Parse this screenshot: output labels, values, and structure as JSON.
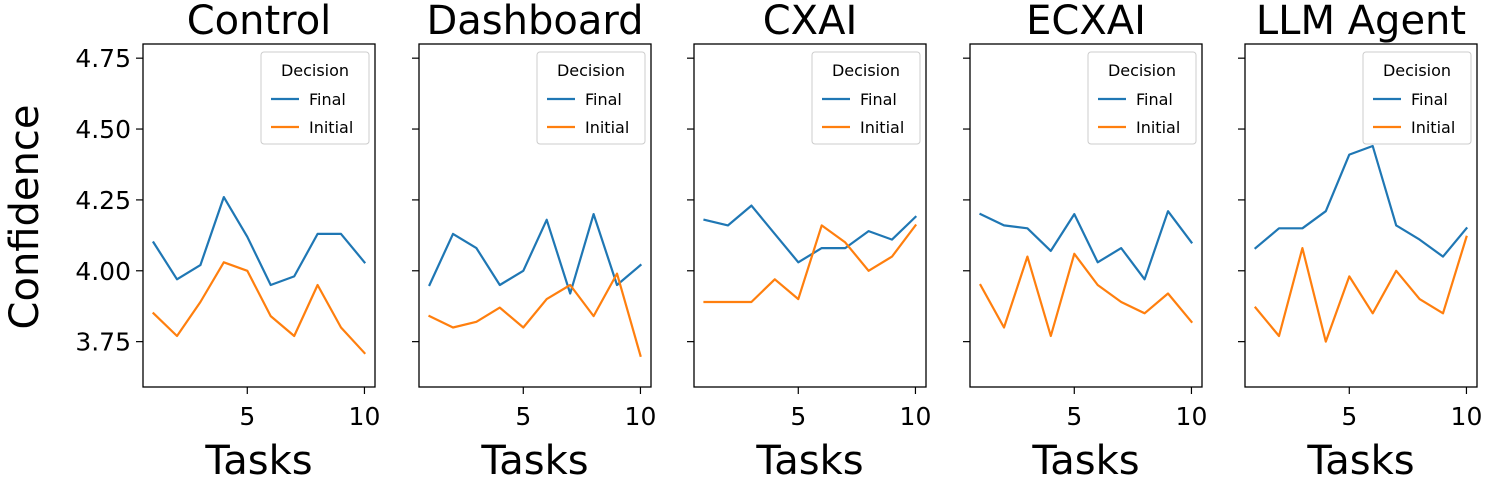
{
  "chart_data": {
    "type": "line",
    "ylabel": "Confidence",
    "xlabel": "Tasks",
    "xlim": [
      0.55,
      10.45
    ],
    "ylim": [
      3.59,
      4.8
    ],
    "xticks": [
      5,
      10
    ],
    "yticks": [
      3.75,
      4.0,
      4.25,
      4.5,
      4.75
    ],
    "ytick_labels": [
      "3.75",
      "4.00",
      "4.25",
      "4.50",
      "4.75"
    ],
    "legend": {
      "title": "Decision",
      "position": "top-right",
      "entries": [
        "Final",
        "Initial"
      ]
    },
    "colors": {
      "Final": "#1f77b4",
      "Initial": "#ff7f0e"
    },
    "x": [
      1,
      2,
      3,
      4,
      5,
      6,
      7,
      8,
      9,
      10
    ],
    "panels": [
      {
        "title": "Control",
        "series": [
          {
            "name": "Final",
            "values": [
              4.1,
              3.97,
              4.02,
              4.26,
              4.12,
              3.95,
              3.98,
              4.13,
              4.13,
              4.03
            ]
          },
          {
            "name": "Initial",
            "values": [
              3.85,
              3.77,
              3.89,
              4.03,
              4.0,
              3.84,
              3.77,
              3.95,
              3.8,
              3.71
            ]
          }
        ]
      },
      {
        "title": "Dashboard",
        "series": [
          {
            "name": "Final",
            "values": [
              3.95,
              4.13,
              4.08,
              3.95,
              4.0,
              4.18,
              3.92,
              4.2,
              3.95,
              4.02
            ]
          },
          {
            "name": "Initial",
            "values": [
              3.84,
              3.8,
              3.82,
              3.87,
              3.8,
              3.9,
              3.95,
              3.84,
              3.99,
              3.7
            ]
          }
        ]
      },
      {
        "title": "CXAI",
        "series": [
          {
            "name": "Final",
            "values": [
              4.18,
              4.16,
              4.23,
              4.13,
              4.03,
              4.08,
              4.08,
              4.14,
              4.11,
              4.19
            ]
          },
          {
            "name": "Initial",
            "values": [
              3.89,
              3.89,
              3.89,
              3.97,
              3.9,
              4.16,
              4.1,
              4.0,
              4.05,
              4.16
            ]
          }
        ]
      },
      {
        "title": "ECXAI",
        "series": [
          {
            "name": "Final",
            "values": [
              4.2,
              4.16,
              4.15,
              4.07,
              4.2,
              4.03,
              4.08,
              3.97,
              4.21,
              4.1
            ]
          },
          {
            "name": "Initial",
            "values": [
              3.95,
              3.8,
              4.05,
              3.77,
              4.06,
              3.95,
              3.89,
              3.85,
              3.92,
              3.82
            ]
          }
        ]
      },
      {
        "title": "LLM Agent",
        "series": [
          {
            "name": "Final",
            "values": [
              4.08,
              4.15,
              4.15,
              4.21,
              4.41,
              4.44,
              4.16,
              4.11,
              4.05,
              4.15
            ]
          },
          {
            "name": "Initial",
            "values": [
              3.87,
              3.77,
              4.08,
              3.75,
              3.98,
              3.85,
              4.0,
              3.9,
              3.85,
              4.12
            ]
          }
        ]
      }
    ]
  }
}
